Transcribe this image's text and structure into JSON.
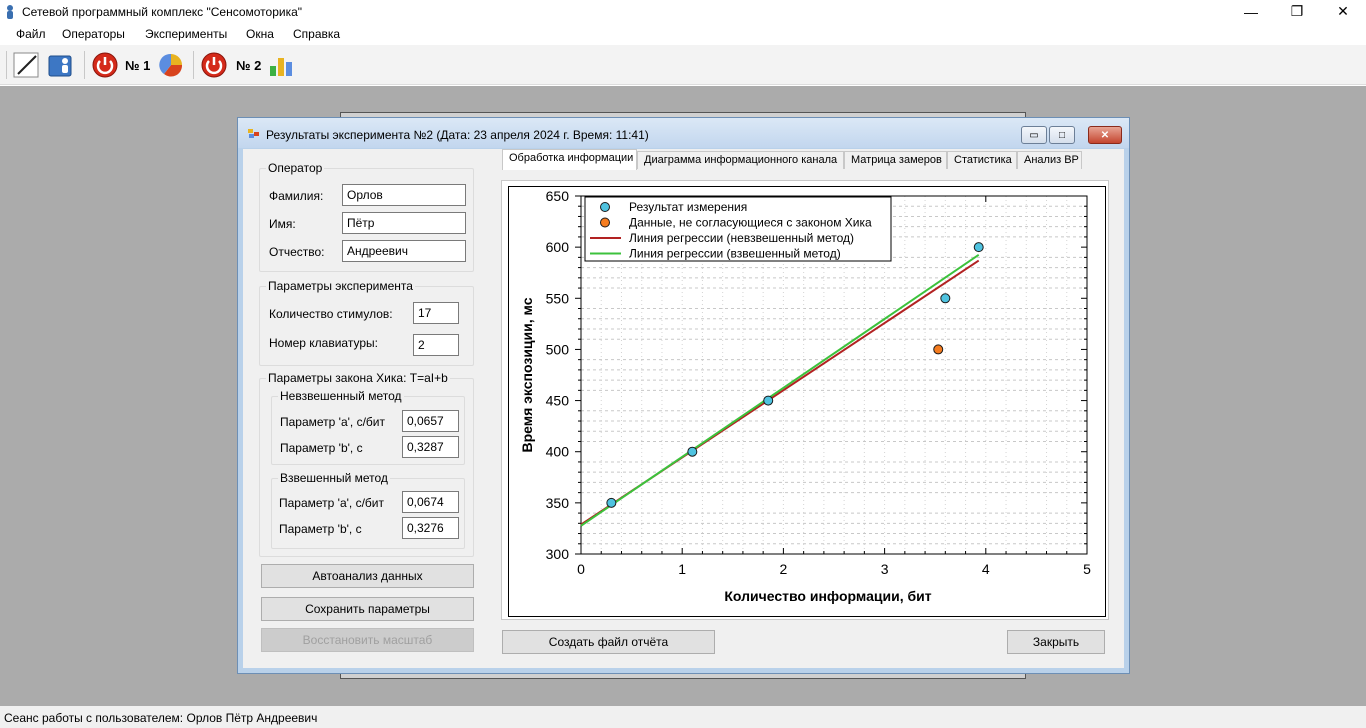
{
  "app": {
    "title": "Сетевой программный комплекс \"Сенсомоторика\""
  },
  "window_controls": {
    "minimize": "—",
    "restore": "❐",
    "close": "✕"
  },
  "menu": [
    "Файл",
    "Операторы",
    "Эксперименты",
    "Окна",
    "Справка"
  ],
  "toolbar": {
    "exp1_label": "№ 1",
    "exp2_label": "№ 2"
  },
  "dialog": {
    "title": "Результаты эксперимента №2 (Дата: 23 апреля 2024 г. Время: 11:41)",
    "controls": {
      "minimize": "▭",
      "maximize": "□",
      "close": "✕"
    },
    "operator": {
      "legend": "Оператор",
      "surname_label": "Фамилия:",
      "surname": "Орлов",
      "name_label": "Имя:",
      "name": "Пётр",
      "patronymic_label": "Отчество:",
      "patronymic": "Андреевич"
    },
    "experiment_params": {
      "legend": "Параметры эксперимента",
      "stimuli_label": "Количество стимулов:",
      "stimuli": "17",
      "keyboard_label": "Номер клавиатуры:",
      "keyboard": "2"
    },
    "hick": {
      "legend": "Параметры закона Хика: T=aI+b",
      "unweighted": {
        "legend": "Невзвешенный метод",
        "a_label": "Параметр 'a', с/бит",
        "a": "0,0657",
        "b_label": "Параметр 'b', с",
        "b": "0,3287"
      },
      "weighted": {
        "legend": "Взвешенный метод",
        "a_label": "Параметр 'a', с/бит",
        "a": "0,0674",
        "b_label": "Параметр 'b', с",
        "b": "0,3276"
      }
    },
    "buttons": {
      "autoanalysis": "Автоанализ данных",
      "save_params": "Сохранить параметры",
      "restore_scale": "Восстановить масштаб",
      "create_report": "Создать файл отчёта",
      "close": "Закрыть"
    },
    "tabs": [
      {
        "label": "Обработка информации",
        "active": true
      },
      {
        "label": "Диаграмма информационного канала",
        "active": false
      },
      {
        "label": "Матрица замеров",
        "active": false
      },
      {
        "label": "Статистика",
        "active": false
      },
      {
        "label": "Анализ ВР",
        "active": false
      }
    ]
  },
  "chart_data": {
    "type": "scatter",
    "xlabel": "Количество информации, бит",
    "ylabel": "Время экспозиции, мс",
    "xlim": [
      0,
      5
    ],
    "ylim": [
      300,
      650
    ],
    "x_ticks": [
      "0",
      "1",
      "2",
      "3",
      "4",
      "5"
    ],
    "y_ticks": [
      "300",
      "350",
      "400",
      "450",
      "500",
      "550",
      "600",
      "650"
    ],
    "grid": true,
    "legend_position": "top-left",
    "series": [
      {
        "name": "Результат измерения",
        "kind": "points",
        "color": "#4fc3e0",
        "points": [
          [
            0.3,
            350
          ],
          [
            1.1,
            400
          ],
          [
            1.85,
            450
          ],
          [
            3.6,
            550
          ],
          [
            3.93,
            600
          ]
        ]
      },
      {
        "name": "Данные, не согласующиеся с законом Хика",
        "kind": "points",
        "color": "#f57c1f",
        "points": [
          [
            3.53,
            500
          ]
        ]
      },
      {
        "name": "Линия регрессии (невзвешенный метод)",
        "kind": "line",
        "color": "#b22222",
        "points": [
          [
            0,
            328.7
          ],
          [
            3.93,
            586.9
          ]
        ]
      },
      {
        "name": "Линия регрессии (взвешенный метод)",
        "kind": "line",
        "color": "#3cc23c",
        "points": [
          [
            0,
            327.6
          ],
          [
            3.93,
            592.5
          ]
        ]
      }
    ]
  },
  "statusbar": {
    "text": "Сеанс работы с пользователем: Орлов Пётр Андреевич"
  }
}
